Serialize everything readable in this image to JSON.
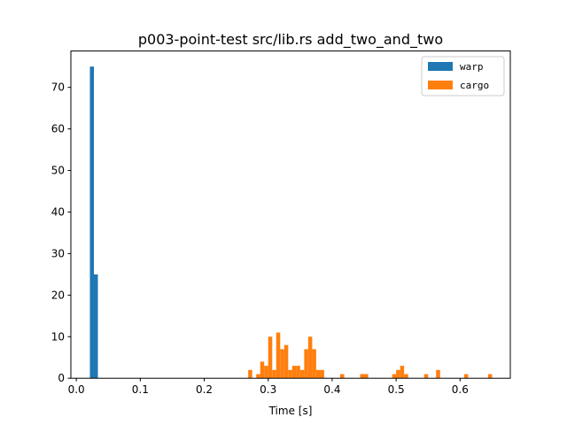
{
  "chart_data": {
    "type": "bar",
    "subtype": "histogram",
    "title": "p003-point-test src/lib.rs add_two_and_two",
    "xlabel": "Time [s]",
    "ylabel": "",
    "xlim": [
      -0.0085,
      0.6785
    ],
    "ylim": [
      0,
      78.75
    ],
    "xticks": [
      0.0,
      0.1,
      0.2,
      0.3,
      0.4,
      0.5,
      0.6
    ],
    "xtick_labels": [
      "0.0",
      "0.1",
      "0.2",
      "0.3",
      "0.4",
      "0.5",
      "0.6"
    ],
    "yticks": [
      0,
      10,
      20,
      30,
      40,
      50,
      60,
      70
    ],
    "ytick_labels": [
      "0",
      "10",
      "20",
      "30",
      "40",
      "50",
      "60",
      "70"
    ],
    "grid": false,
    "legend_position": "top-right",
    "series": [
      {
        "name": "warp",
        "color": "#1f77b4",
        "bin_width": 0.00625,
        "bins": [
          {
            "x0": 0.02125,
            "x1": 0.0275,
            "count": 75
          },
          {
            "x0": 0.0275,
            "x1": 0.03375,
            "count": 25
          }
        ]
      },
      {
        "name": "cargo",
        "color": "#ff7f0e",
        "bin_width": 0.00625,
        "bins": [
          {
            "x0": 0.2687,
            "x1": 0.275,
            "count": 2
          },
          {
            "x0": 0.2813,
            "x1": 0.2875,
            "count": 1
          },
          {
            "x0": 0.2875,
            "x1": 0.2938,
            "count": 4
          },
          {
            "x0": 0.2938,
            "x1": 0.3,
            "count": 3
          },
          {
            "x0": 0.3,
            "x1": 0.3063,
            "count": 10
          },
          {
            "x0": 0.3063,
            "x1": 0.3125,
            "count": 2
          },
          {
            "x0": 0.3125,
            "x1": 0.3188,
            "count": 11
          },
          {
            "x0": 0.3188,
            "x1": 0.325,
            "count": 7
          },
          {
            "x0": 0.325,
            "x1": 0.3313,
            "count": 8
          },
          {
            "x0": 0.3313,
            "x1": 0.3375,
            "count": 2
          },
          {
            "x0": 0.3375,
            "x1": 0.3438,
            "count": 3
          },
          {
            "x0": 0.3438,
            "x1": 0.35,
            "count": 3
          },
          {
            "x0": 0.35,
            "x1": 0.3563,
            "count": 2
          },
          {
            "x0": 0.3563,
            "x1": 0.3625,
            "count": 7
          },
          {
            "x0": 0.3625,
            "x1": 0.3688,
            "count": 10
          },
          {
            "x0": 0.3688,
            "x1": 0.375,
            "count": 7
          },
          {
            "x0": 0.375,
            "x1": 0.3813,
            "count": 2
          },
          {
            "x0": 0.3813,
            "x1": 0.3875,
            "count": 2
          },
          {
            "x0": 0.4125,
            "x1": 0.4188,
            "count": 1
          },
          {
            "x0": 0.4438,
            "x1": 0.45,
            "count": 1
          },
          {
            "x0": 0.45,
            "x1": 0.4563,
            "count": 1
          },
          {
            "x0": 0.4938,
            "x1": 0.5,
            "count": 1
          },
          {
            "x0": 0.5,
            "x1": 0.5063,
            "count": 2
          },
          {
            "x0": 0.5063,
            "x1": 0.5125,
            "count": 3
          },
          {
            "x0": 0.5125,
            "x1": 0.5188,
            "count": 1
          },
          {
            "x0": 0.5438,
            "x1": 0.55,
            "count": 1
          },
          {
            "x0": 0.5625,
            "x1": 0.5688,
            "count": 2
          },
          {
            "x0": 0.6063,
            "x1": 0.6125,
            "count": 1
          },
          {
            "x0": 0.6438,
            "x1": 0.65,
            "count": 1
          }
        ]
      }
    ]
  }
}
